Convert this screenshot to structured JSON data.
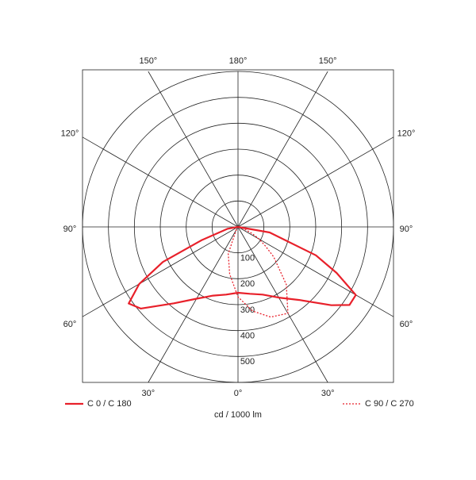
{
  "chart_data": {
    "type": "polar",
    "x_label": "cd / 1000 lm",
    "x": [
      -90,
      -80,
      -70,
      -65,
      -60,
      -55,
      -50,
      -40,
      -30,
      -20,
      -10,
      0,
      10,
      20,
      30,
      40,
      50,
      55,
      60,
      65,
      70,
      80,
      90
    ],
    "series": [
      {
        "name": "C 0 / C 180",
        "color": "#e8202a",
        "style": "solid",
        "values": [
          0,
          40,
          150,
          320,
          440,
          515,
          490,
          385,
          320,
          282,
          265,
          254,
          262,
          278,
          315,
          368,
          470,
          525,
          525,
          420,
          320,
          124,
          0
        ]
      },
      {
        "name": "C 90 / C 270",
        "color": "#e8202a",
        "style": "dotted",
        "values": [
          0,
          1,
          2,
          2,
          3,
          4,
          5,
          8,
          15,
          110,
          185,
          270,
          330,
          370,
          385,
          290,
          180,
          130,
          95,
          60,
          30,
          10,
          0
        ]
      }
    ],
    "rlim": [
      0,
      600
    ],
    "rticks": [
      100,
      200,
      300,
      400,
      500
    ],
    "angle_ticks": [
      {
        "value": 0,
        "label": "0°"
      },
      {
        "value": 30,
        "label": "30°"
      },
      {
        "value": 60,
        "label": "60°"
      },
      {
        "value": 90,
        "label": "90°"
      },
      {
        "value": 120,
        "label": "120°"
      },
      {
        "value": 150,
        "label": "150°"
      },
      {
        "value": 180,
        "label": "180°"
      },
      {
        "value": -150,
        "label": "150°"
      },
      {
        "value": -120,
        "label": "120°"
      },
      {
        "value": -90,
        "label": "90°"
      },
      {
        "value": -60,
        "label": "60°"
      },
      {
        "value": -30,
        "label": "30°"
      }
    ],
    "legend": "bottom"
  }
}
